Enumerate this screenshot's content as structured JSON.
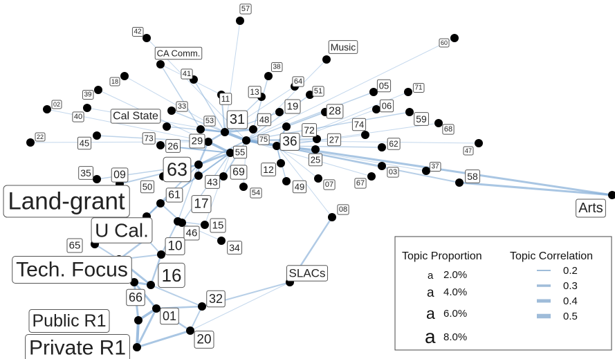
{
  "legend": {
    "proportion_title": "Topic Proportion",
    "correlation_title": "Topic Correlation",
    "proportion_glyph": "a",
    "proportion_items": [
      {
        "label": "2.0%",
        "value": 0.02
      },
      {
        "label": "4.0%",
        "value": 0.04
      },
      {
        "label": "6.0%",
        "value": 0.06
      },
      {
        "label": "8.0%",
        "value": 0.08
      }
    ],
    "correlation_items": [
      {
        "label": "0.2",
        "value": 0.2
      },
      {
        "label": "0.3",
        "value": 0.3
      },
      {
        "label": "0.4",
        "value": 0.4
      },
      {
        "label": "0.5",
        "value": 0.5
      }
    ]
  },
  "colors": {
    "edge": "#7ba7d4",
    "node": "#000000",
    "label_border": "#555555"
  },
  "nodes": [
    {
      "id": "57"
    },
    {
      "id": "42"
    },
    {
      "id": "60"
    },
    {
      "id": "CA Comm."
    },
    {
      "id": "Music"
    },
    {
      "id": "38"
    },
    {
      "id": "41"
    },
    {
      "id": "18"
    },
    {
      "id": "64"
    },
    {
      "id": "05"
    },
    {
      "id": "71"
    },
    {
      "id": "13"
    },
    {
      "id": "51"
    },
    {
      "id": "39"
    },
    {
      "id": "11"
    },
    {
      "id": "02"
    },
    {
      "id": "33"
    },
    {
      "id": "19"
    },
    {
      "id": "06"
    },
    {
      "id": "28"
    },
    {
      "id": "40"
    },
    {
      "id": "Cal State"
    },
    {
      "id": "31"
    },
    {
      "id": "59"
    },
    {
      "id": "48"
    },
    {
      "id": "53"
    },
    {
      "id": "68"
    },
    {
      "id": "74"
    },
    {
      "id": "72"
    },
    {
      "id": "22"
    },
    {
      "id": "73"
    },
    {
      "id": "29"
    },
    {
      "id": "75"
    },
    {
      "id": "36"
    },
    {
      "id": "27"
    },
    {
      "id": "45"
    },
    {
      "id": "26"
    },
    {
      "id": "62"
    },
    {
      "id": "47"
    },
    {
      "id": "55"
    },
    {
      "id": "25"
    },
    {
      "id": "63"
    },
    {
      "id": "69"
    },
    {
      "id": "12"
    },
    {
      "id": "03"
    },
    {
      "id": "37"
    },
    {
      "id": "35"
    },
    {
      "id": "09"
    },
    {
      "id": "58"
    },
    {
      "id": "43"
    },
    {
      "id": "07"
    },
    {
      "id": "67"
    },
    {
      "id": "50"
    },
    {
      "id": "54"
    },
    {
      "id": "49"
    },
    {
      "id": "Land-grant"
    },
    {
      "id": "61"
    },
    {
      "id": "Arts"
    },
    {
      "id": "17"
    },
    {
      "id": "08"
    },
    {
      "id": "U Cal."
    },
    {
      "id": "15"
    },
    {
      "id": "46"
    },
    {
      "id": "65"
    },
    {
      "id": "34"
    },
    {
      "id": "10"
    },
    {
      "id": "Tech. Focus"
    },
    {
      "id": "SLACs"
    },
    {
      "id": "16"
    },
    {
      "id": "66"
    },
    {
      "id": "32"
    },
    {
      "id": "01"
    },
    {
      "id": "Public R1"
    },
    {
      "id": "20"
    },
    {
      "id": "Private R1"
    }
  ],
  "edges": [
    [
      "31",
      "75",
      0.5
    ],
    [
      "75",
      "36",
      0.45
    ],
    [
      "29",
      "55",
      0.45
    ],
    [
      "55",
      "63",
      0.4
    ],
    [
      "31",
      "48",
      0.4
    ],
    [
      "53",
      "31",
      0.35
    ],
    [
      "36",
      "72",
      0.35
    ],
    [
      "75",
      "27",
      0.3
    ],
    [
      "63",
      "43",
      0.35
    ],
    [
      "43",
      "61",
      0.3
    ],
    [
      "61",
      "17",
      0.3
    ],
    [
      "17",
      "46",
      0.35
    ],
    [
      "46",
      "10",
      0.3
    ],
    [
      "10",
      "16",
      0.35
    ],
    [
      "16",
      "66",
      0.4
    ],
    [
      "66",
      "01",
      0.4
    ],
    [
      "01",
      "32",
      0.35
    ],
    [
      "32",
      "20",
      0.3
    ],
    [
      "01",
      "20",
      0.35
    ],
    [
      "20",
      "Private R1",
      0.4
    ],
    [
      "01",
      "Private R1",
      0.4
    ],
    [
      "Public R1",
      "01",
      0.45
    ],
    [
      "Public R1",
      "Private R1",
      0.5
    ],
    [
      "66",
      "Public R1",
      0.4
    ],
    [
      "Tech. Focus",
      "16",
      0.4
    ],
    [
      "Tech. Focus",
      "66",
      0.35
    ],
    [
      "U Cal.",
      "Tech. Focus",
      0.35
    ],
    [
      "U Cal.",
      "10",
      0.3
    ],
    [
      "Land-grant",
      "U Cal.",
      0.35
    ],
    [
      "Land-grant",
      "61",
      0.35
    ],
    [
      "Land-grant",
      "63",
      0.3
    ],
    [
      "09",
      "63",
      0.3
    ],
    [
      "Cal State",
      "31",
      0.25
    ],
    [
      "CA Comm.",
      "53",
      0.25
    ],
    [
      "CA Comm.",
      "11",
      0.2
    ],
    [
      "41",
      "31",
      0.25
    ],
    [
      "11",
      "31",
      0.3
    ],
    [
      "33",
      "31",
      0.25
    ],
    [
      "40",
      "31",
      0.2
    ],
    [
      "39",
      "29",
      0.2
    ],
    [
      "18",
      "31",
      0.2
    ],
    [
      "42",
      "75",
      0.2
    ],
    [
      "02",
      "29",
      0.2
    ],
    [
      "22",
      "29",
      0.2
    ],
    [
      "45",
      "29",
      0.25
    ],
    [
      "73",
      "55",
      0.25
    ],
    [
      "26",
      "55",
      0.3
    ],
    [
      "29",
      "31",
      0.35
    ],
    [
      "69",
      "75",
      0.3
    ],
    [
      "12",
      "36",
      0.25
    ],
    [
      "49",
      "36",
      0.25
    ],
    [
      "54",
      "75",
      0.2
    ],
    [
      "25",
      "36",
      0.25
    ],
    [
      "07",
      "36",
      0.2
    ],
    [
      "67",
      "75",
      0.2
    ],
    [
      "03",
      "36",
      0.25
    ],
    [
      "37",
      "75",
      0.2
    ],
    [
      "58",
      "36",
      0.3
    ],
    [
      "Arts",
      "75",
      0.4
    ],
    [
      "Arts",
      "58",
      0.4
    ],
    [
      "62",
      "36",
      0.25
    ],
    [
      "47",
      "75",
      0.2
    ],
    [
      "74",
      "36",
      0.2
    ],
    [
      "28",
      "72",
      0.3
    ],
    [
      "59",
      "75",
      0.25
    ],
    [
      "68",
      "36",
      0.2
    ],
    [
      "06",
      "36",
      0.2
    ],
    [
      "05",
      "75",
      0.25
    ],
    [
      "71",
      "36",
      0.2
    ],
    [
      "19",
      "31",
      0.25
    ],
    [
      "51",
      "75",
      0.25
    ],
    [
      "64",
      "31",
      0.2
    ],
    [
      "13",
      "31",
      0.25
    ],
    [
      "38",
      "48",
      0.25
    ],
    [
      "Music",
      "75",
      0.2
    ],
    [
      "60",
      "75",
      0.2
    ],
    [
      "57",
      "31",
      0.2
    ],
    [
      "08",
      "SLACs",
      0.35
    ],
    [
      "08",
      "36",
      0.2
    ],
    [
      "SLACs",
      "32",
      0.3
    ],
    [
      "SLACs",
      "20",
      0.2
    ],
    [
      "65",
      "Tech. Focus",
      0.3
    ],
    [
      "35",
      "63",
      0.25
    ],
    [
      "50",
      "63",
      0.25
    ],
    [
      "15",
      "46",
      0.25
    ],
    [
      "34",
      "46",
      0.2
    ],
    [
      "43",
      "55",
      0.3
    ],
    [
      "63",
      "29",
      0.35
    ],
    [
      "63",
      "75",
      0.3
    ],
    [
      "10",
      "Tech. Focus",
      0.3
    ],
    [
      "16",
      "32",
      0.3
    ],
    [
      "17",
      "55",
      0.25
    ],
    [
      "15",
      "55",
      0.2
    ],
    [
      "46",
      "63",
      0.25
    ],
    [
      "61",
      "55",
      0.25
    ]
  ]
}
